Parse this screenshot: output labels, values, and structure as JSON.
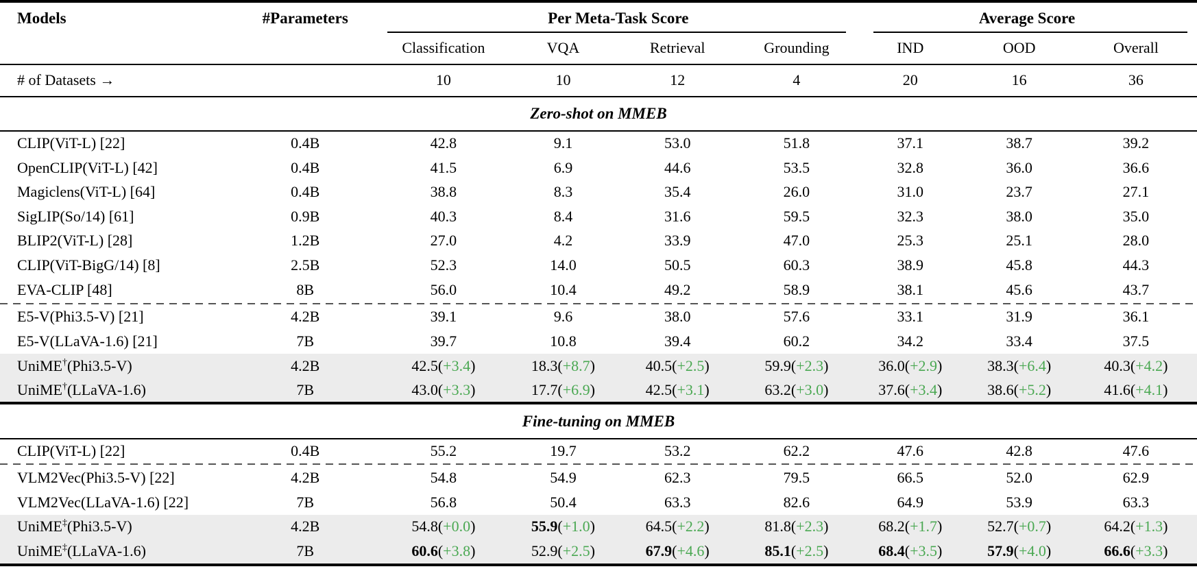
{
  "table": {
    "colors": {
      "accent_green": "#4AA852",
      "row_highlight": "#ECECEC",
      "rule_black": "#000000",
      "dash_gray": "#555555"
    },
    "header": {
      "models": "Models",
      "parameters": "#Parameters",
      "group1": "Per Meta-Task Score",
      "group2": "Average Score",
      "subcols": [
        "Classification",
        "VQA",
        "Retrieval",
        "Grounding",
        "IND",
        "OOD",
        "Overall"
      ]
    },
    "datasets_row": {
      "label": "# of Datasets →",
      "counts": [
        "10",
        "10",
        "12",
        "4",
        "20",
        "16",
        "36"
      ]
    },
    "sections": [
      {
        "title": "Zero-shot on MMEB",
        "rows": [
          {
            "name": "CLIP(ViT-L) [22]",
            "sup": "",
            "rest": "",
            "params": "0.4B",
            "highlight": false,
            "dashed_before": false,
            "scores": [
              {
                "v": "42.8"
              },
              {
                "v": "9.1"
              },
              {
                "v": "53.0"
              },
              {
                "v": "51.8"
              },
              {
                "v": "37.1"
              },
              {
                "v": "38.7"
              },
              {
                "v": "39.2"
              }
            ]
          },
          {
            "name": "OpenCLIP(ViT-L) [42]",
            "sup": "",
            "rest": "",
            "params": "0.4B",
            "highlight": false,
            "dashed_before": false,
            "scores": [
              {
                "v": "41.5"
              },
              {
                "v": "6.9"
              },
              {
                "v": "44.6"
              },
              {
                "v": "53.5"
              },
              {
                "v": "32.8"
              },
              {
                "v": "36.0"
              },
              {
                "v": "36.6"
              }
            ]
          },
          {
            "name": "Magiclens(ViT-L) [64]",
            "sup": "",
            "rest": "",
            "params": "0.4B",
            "highlight": false,
            "dashed_before": false,
            "scores": [
              {
                "v": "38.8"
              },
              {
                "v": "8.3"
              },
              {
                "v": "35.4"
              },
              {
                "v": "26.0"
              },
              {
                "v": "31.0"
              },
              {
                "v": "23.7"
              },
              {
                "v": "27.1"
              }
            ]
          },
          {
            "name": "SigLIP(So/14) [61]",
            "sup": "",
            "rest": "",
            "params": "0.9B",
            "highlight": false,
            "dashed_before": false,
            "scores": [
              {
                "v": "40.3"
              },
              {
                "v": "8.4"
              },
              {
                "v": "31.6"
              },
              {
                "v": "59.5"
              },
              {
                "v": "32.3"
              },
              {
                "v": "38.0"
              },
              {
                "v": "35.0"
              }
            ]
          },
          {
            "name": "BLIP2(ViT-L) [28]",
            "sup": "",
            "rest": "",
            "params": "1.2B",
            "highlight": false,
            "dashed_before": false,
            "scores": [
              {
                "v": "27.0"
              },
              {
                "v": "4.2"
              },
              {
                "v": "33.9"
              },
              {
                "v": "47.0"
              },
              {
                "v": "25.3"
              },
              {
                "v": "25.1"
              },
              {
                "v": "28.0"
              }
            ]
          },
          {
            "name": "CLIP(ViT-BigG/14) [8]",
            "sup": "",
            "rest": "",
            "params": "2.5B",
            "highlight": false,
            "dashed_before": false,
            "scores": [
              {
                "v": "52.3"
              },
              {
                "v": "14.0"
              },
              {
                "v": "50.5"
              },
              {
                "v": "60.3"
              },
              {
                "v": "38.9"
              },
              {
                "v": "45.8"
              },
              {
                "v": "44.3"
              }
            ]
          },
          {
            "name": "EVA-CLIP [48]",
            "sup": "",
            "rest": "",
            "params": "8B",
            "highlight": false,
            "dashed_before": false,
            "scores": [
              {
                "v": "56.0"
              },
              {
                "v": "10.4"
              },
              {
                "v": "49.2"
              },
              {
                "v": "58.9"
              },
              {
                "v": "38.1"
              },
              {
                "v": "45.6"
              },
              {
                "v": "43.7"
              }
            ]
          },
          {
            "name": "E5-V(Phi3.5-V) [21]",
            "sup": "",
            "rest": "",
            "params": "4.2B",
            "highlight": false,
            "dashed_before": true,
            "scores": [
              {
                "v": "39.1"
              },
              {
                "v": "9.6"
              },
              {
                "v": "38.0"
              },
              {
                "v": "57.6"
              },
              {
                "v": "33.1"
              },
              {
                "v": "31.9"
              },
              {
                "v": "36.1"
              }
            ]
          },
          {
            "name": "E5-V(LLaVA-1.6) [21]",
            "sup": "",
            "rest": "",
            "params": "7B",
            "highlight": false,
            "dashed_before": false,
            "scores": [
              {
                "v": "39.7"
              },
              {
                "v": "10.8"
              },
              {
                "v": "39.4"
              },
              {
                "v": "60.2"
              },
              {
                "v": "34.2"
              },
              {
                "v": "33.4"
              },
              {
                "v": "37.5"
              }
            ]
          },
          {
            "name": "UniME",
            "sup": "†",
            "rest": "(Phi3.5-V)",
            "params": "4.2B",
            "highlight": true,
            "dashed_before": false,
            "scores": [
              {
                "v": "42.5",
                "d": "+3.4"
              },
              {
                "v": "18.3",
                "d": "+8.7"
              },
              {
                "v": "40.5",
                "d": "+2.5"
              },
              {
                "v": "59.9",
                "d": "+2.3"
              },
              {
                "v": "36.0",
                "d": "+2.9"
              },
              {
                "v": "38.3",
                "d": "+6.4"
              },
              {
                "v": "40.3",
                "d": "+4.2"
              }
            ]
          },
          {
            "name": "UniME",
            "sup": "†",
            "rest": "(LLaVA-1.6)",
            "params": "7B",
            "highlight": true,
            "dashed_before": false,
            "scores": [
              {
                "v": "43.0",
                "d": "+3.3"
              },
              {
                "v": "17.7",
                "d": "+6.9"
              },
              {
                "v": "42.5",
                "d": "+3.1"
              },
              {
                "v": "63.2",
                "d": "+3.0"
              },
              {
                "v": "37.6",
                "d": "+3.4"
              },
              {
                "v": "38.6",
                "d": "+5.2"
              },
              {
                "v": "41.6",
                "d": "+4.1"
              }
            ]
          }
        ]
      },
      {
        "title": "Fine-tuning on MMEB",
        "rows": [
          {
            "name": "CLIP(ViT-L) [22]",
            "sup": "",
            "rest": "",
            "params": "0.4B",
            "highlight": false,
            "dashed_before": false,
            "scores": [
              {
                "v": "55.2"
              },
              {
                "v": "19.7"
              },
              {
                "v": "53.2"
              },
              {
                "v": "62.2"
              },
              {
                "v": "47.6"
              },
              {
                "v": "42.8"
              },
              {
                "v": "47.6"
              }
            ]
          },
          {
            "name": "VLM2Vec(Phi3.5-V) [22]",
            "sup": "",
            "rest": "",
            "params": "4.2B",
            "highlight": false,
            "dashed_before": true,
            "scores": [
              {
                "v": "54.8"
              },
              {
                "v": "54.9"
              },
              {
                "v": "62.3"
              },
              {
                "v": "79.5"
              },
              {
                "v": "66.5"
              },
              {
                "v": "52.0"
              },
              {
                "v": "62.9"
              }
            ]
          },
          {
            "name": "VLM2Vec(LLaVA-1.6) [22]",
            "sup": "",
            "rest": "",
            "params": "7B",
            "highlight": false,
            "dashed_before": false,
            "scores": [
              {
                "v": "56.8"
              },
              {
                "v": "50.4"
              },
              {
                "v": "63.3"
              },
              {
                "v": "82.6"
              },
              {
                "v": "64.9"
              },
              {
                "v": "53.9"
              },
              {
                "v": "63.3"
              }
            ]
          },
          {
            "name": "UniME",
            "sup": "‡",
            "rest": "(Phi3.5-V)",
            "params": "4.2B",
            "highlight": true,
            "dashed_before": false,
            "scores": [
              {
                "v": "54.8",
                "d": "+0.0"
              },
              {
                "v": "55.9",
                "d": "+1.0",
                "b": true
              },
              {
                "v": "64.5",
                "d": "+2.2"
              },
              {
                "v": "81.8",
                "d": "+2.3"
              },
              {
                "v": "68.2",
                "d": "+1.7"
              },
              {
                "v": "52.7",
                "d": "+0.7"
              },
              {
                "v": "64.2",
                "d": "+1.3"
              }
            ]
          },
          {
            "name": "UniME",
            "sup": "‡",
            "rest": "(LLaVA-1.6)",
            "params": "7B",
            "highlight": true,
            "dashed_before": false,
            "scores": [
              {
                "v": "60.6",
                "d": "+3.8",
                "b": true
              },
              {
                "v": "52.9",
                "d": "+2.5"
              },
              {
                "v": "67.9",
                "d": "+4.6",
                "b": true
              },
              {
                "v": "85.1",
                "d": "+2.5",
                "b": true
              },
              {
                "v": "68.4",
                "d": "+3.5",
                "b": true
              },
              {
                "v": "57.9",
                "d": "+4.0",
                "b": true
              },
              {
                "v": "66.6",
                "d": "+3.3",
                "b": true
              }
            ]
          }
        ]
      }
    ]
  }
}
